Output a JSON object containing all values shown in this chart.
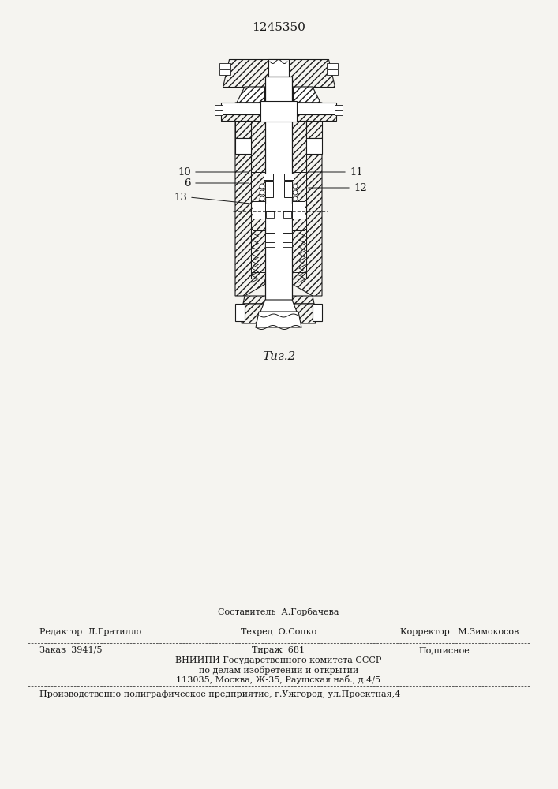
{
  "patent_number": "1245350",
  "fig_label": "Τиг.2",
  "bg_color": "#f5f4f0",
  "line_color": "#1a1a1a",
  "footer_sestavitel": "Составитель  А.Горбачева",
  "footer_redaktor_label": "Редактор  Л.Гратилло",
  "footer_tekhred_label": "Техред  О.Сопко",
  "footer_korrektor_label": "Корректор   М.Зимокосов",
  "footer_zakaz": "Заказ  3941/5",
  "footer_tirazh": "Тираж  681",
  "footer_podpisnoe": "Подписное",
  "footer_vniipи": "ВНИИПИ Государственного комитета СССР",
  "footer_po_delam": "по делам изобретений и открытий",
  "footer_address": "113035, Москва, Ж-35, Раушская наб., д.4/5",
  "footer_production": "Производственно-полиграфическое предприятие, г.Ужгород, ул.Проектная,4"
}
